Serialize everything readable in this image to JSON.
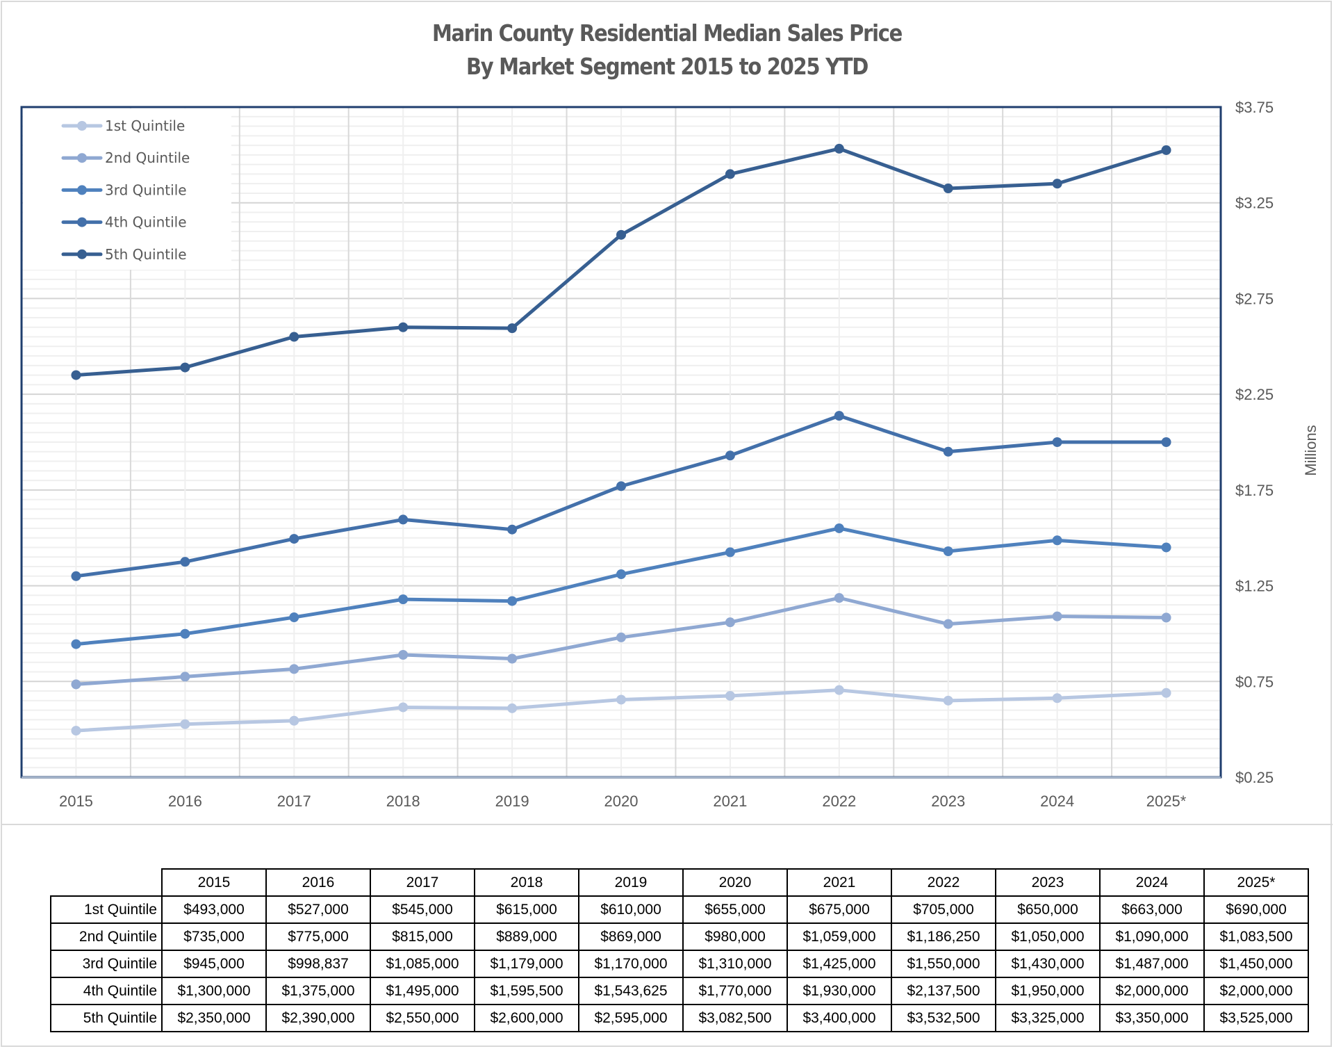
{
  "title_line1": "Marin County Residential Median Sales Price",
  "title_line2": "By Market Segment 2015 to 2025 YTD",
  "chart_data": {
    "type": "line",
    "title": "Marin County Residential Median Sales Price By Market Segment 2015 to 2025 YTD",
    "xlabel": "",
    "ylabel": "Millions",
    "categories": [
      "2015",
      "2016",
      "2017",
      "2018",
      "2019",
      "2020",
      "2021",
      "2022",
      "2023",
      "2024",
      "2025*"
    ],
    "ylim": [
      0.25,
      3.75
    ],
    "yticks": [
      0.25,
      0.75,
      1.25,
      1.75,
      2.25,
      2.75,
      3.25,
      3.75
    ],
    "ytick_labels": [
      "$0.25",
      "$0.75",
      "$1.25",
      "$1.75",
      "$2.25",
      "$2.75",
      "$3.25",
      "$3.75"
    ],
    "y_axis_side": "right",
    "grid": true,
    "legend_position": "top-left",
    "series": [
      {
        "name": "1st Quintile",
        "color": "#b7c7e2",
        "values": [
          0.493,
          0.527,
          0.545,
          0.615,
          0.61,
          0.655,
          0.675,
          0.705,
          0.65,
          0.663,
          0.69
        ]
      },
      {
        "name": "2nd Quintile",
        "color": "#8fa8d2",
        "values": [
          0.735,
          0.775,
          0.815,
          0.889,
          0.869,
          0.98,
          1.059,
          1.18625,
          1.05,
          1.09,
          1.0835
        ]
      },
      {
        "name": "3rd Quintile",
        "color": "#4f81bd",
        "values": [
          0.945,
          0.998837,
          1.085,
          1.179,
          1.17,
          1.31,
          1.425,
          1.55,
          1.43,
          1.487,
          1.45
        ]
      },
      {
        "name": "4th Quintile",
        "color": "#4370aa",
        "values": [
          1.3,
          1.375,
          1.495,
          1.5955,
          1.543625,
          1.77,
          1.93,
          2.1375,
          1.95,
          2.0,
          2.0
        ]
      },
      {
        "name": "5th Quintile",
        "color": "#375f91",
        "values": [
          2.35,
          2.39,
          2.55,
          2.6,
          2.595,
          3.0825,
          3.4,
          3.5325,
          3.325,
          3.35,
          3.525
        ]
      }
    ]
  },
  "table": {
    "headers": [
      "2015",
      "2016",
      "2017",
      "2018",
      "2019",
      "2020",
      "2021",
      "2022",
      "2023",
      "2024",
      "2025*"
    ],
    "rows": [
      {
        "label": "1st Quintile",
        "cells": [
          "$493,000",
          "$527,000",
          "$545,000",
          "$615,000",
          "$610,000",
          "$655,000",
          "$675,000",
          "$705,000",
          "$650,000",
          "$663,000",
          "$690,000"
        ]
      },
      {
        "label": "2nd Quintile",
        "cells": [
          "$735,000",
          "$775,000",
          "$815,000",
          "$889,000",
          "$869,000",
          "$980,000",
          "$1,059,000",
          "$1,186,250",
          "$1,050,000",
          "$1,090,000",
          "$1,083,500"
        ]
      },
      {
        "label": "3rd Quintile",
        "cells": [
          "$945,000",
          "$998,837",
          "$1,085,000",
          "$1,179,000",
          "$1,170,000",
          "$1,310,000",
          "$1,425,000",
          "$1,550,000",
          "$1,430,000",
          "$1,487,000",
          "$1,450,000"
        ]
      },
      {
        "label": "4th Quintile",
        "cells": [
          "$1,300,000",
          "$1,375,000",
          "$1,495,000",
          "$1,595,500",
          "$1,543,625",
          "$1,770,000",
          "$1,930,000",
          "$2,137,500",
          "$1,950,000",
          "$2,000,000",
          "$2,000,000"
        ]
      },
      {
        "label": "5th Quintile",
        "cells": [
          "$2,350,000",
          "$2,390,000",
          "$2,550,000",
          "$2,600,000",
          "$2,595,000",
          "$3,082,500",
          "$3,400,000",
          "$3,532,500",
          "$3,325,000",
          "$3,350,000",
          "$3,525,000"
        ]
      }
    ]
  }
}
